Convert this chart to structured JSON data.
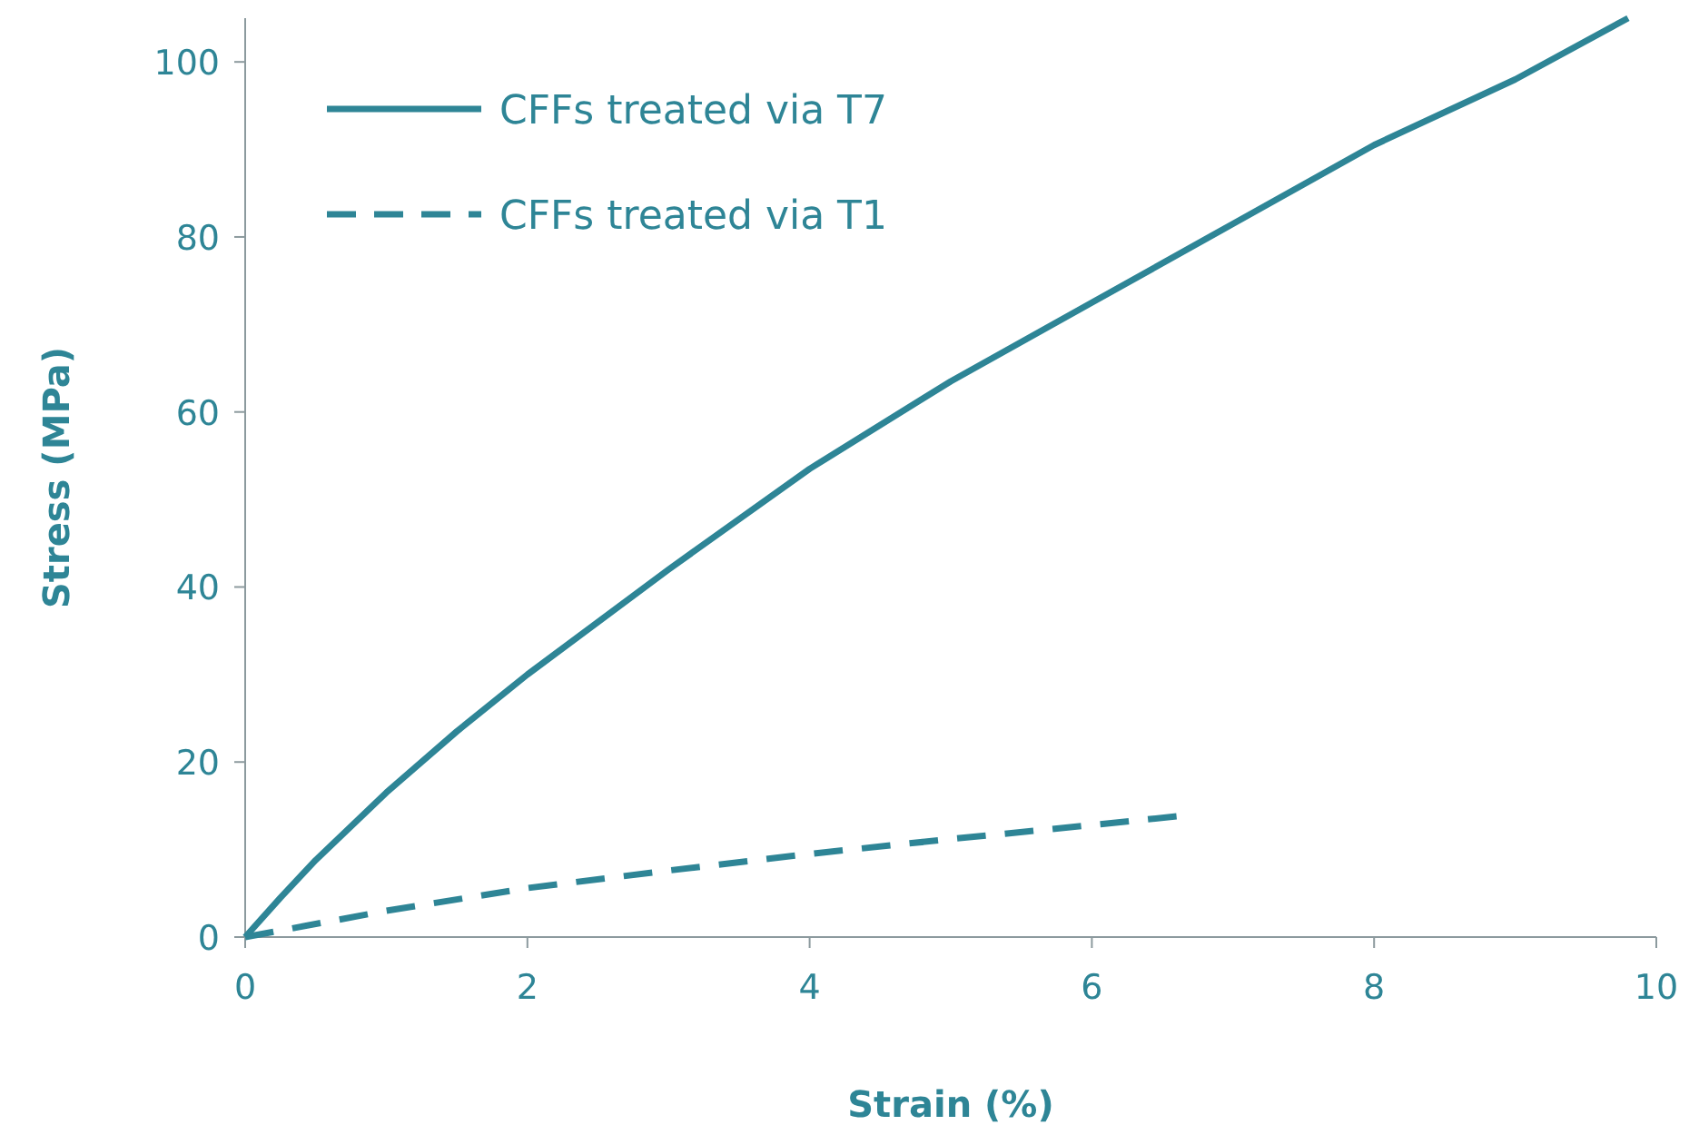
{
  "chart_data": {
    "type": "line",
    "xlabel": "Strain (%)",
    "ylabel": "Stress (MPa)",
    "xlim": [
      0,
      10
    ],
    "ylim": [
      0,
      105
    ],
    "xticks": [
      0,
      2,
      4,
      6,
      8,
      10
    ],
    "yticks": [
      0,
      20,
      40,
      60,
      80,
      100
    ],
    "grid": false,
    "legend": "top left",
    "marker": "none",
    "series": [
      {
        "name": "CFFs treated via T7",
        "color": "#2e8596",
        "line_style": "solid",
        "x": [
          0,
          0.25,
          0.5,
          1,
          1.5,
          2,
          3,
          4,
          5,
          6,
          7,
          8,
          9,
          9.8
        ],
        "values": [
          0,
          4.5,
          8.8,
          16.5,
          23.5,
          30,
          42,
          53.5,
          63.5,
          72.5,
          81.5,
          90.5,
          98,
          105
        ]
      },
      {
        "name": "CFFs treated via T1",
        "color": "#2e8596",
        "line_style": "dashed",
        "x": [
          0,
          1,
          2,
          3,
          4,
          5,
          6,
          6.6
        ],
        "values": [
          0,
          3,
          5.6,
          7.6,
          9.5,
          11.2,
          12.8,
          13.8
        ]
      }
    ]
  }
}
